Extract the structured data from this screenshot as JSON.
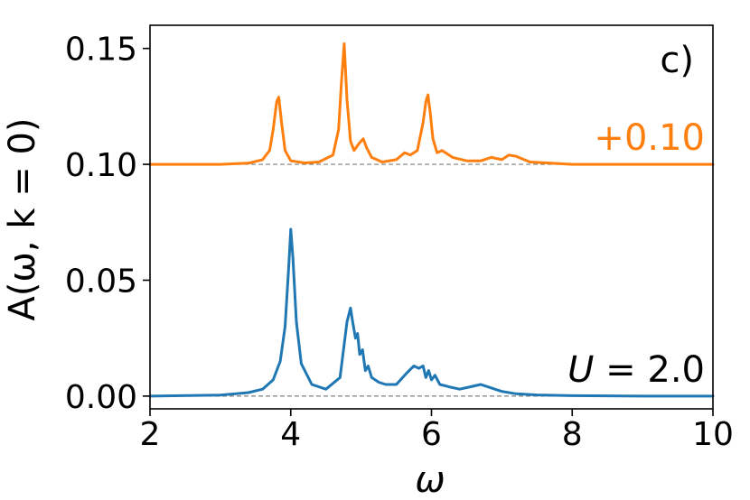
{
  "chart_data": {
    "type": "line",
    "panel_label": "c)",
    "xlabel": "ω",
    "ylabel": "A(ω, k = 0)",
    "xlim": [
      2,
      10
    ],
    "ylim": [
      -0.0055,
      0.16
    ],
    "x_ticks": [
      "2",
      "4",
      "6",
      "8",
      "10"
    ],
    "x_tick_values": [
      2,
      4,
      6,
      8,
      10
    ],
    "y_ticks": [
      "0.00",
      "0.05",
      "0.10",
      "0.15"
    ],
    "y_tick_values": [
      0.0,
      0.05,
      0.1,
      0.15
    ],
    "baselines": [
      0.0,
      0.1
    ],
    "grid": false,
    "legend": "none",
    "colors": {
      "upper": "#ff7f0e",
      "lower": "#1f77b4",
      "baseline": "#808080"
    },
    "annotations": {
      "upper_offset": "+0.10",
      "lower_series": "U = 2.0"
    },
    "series": [
      {
        "offset": 0.1,
        "color": "#ff7f0e",
        "x": [
          2.0,
          3.0,
          3.4,
          3.6,
          3.7,
          3.75,
          3.8,
          3.83,
          3.87,
          3.92,
          4.0,
          4.2,
          4.4,
          4.6,
          4.68,
          4.72,
          4.76,
          4.8,
          4.85,
          4.9,
          4.97,
          5.03,
          5.08,
          5.15,
          5.3,
          5.5,
          5.62,
          5.7,
          5.8,
          5.88,
          5.92,
          5.95,
          5.98,
          6.02,
          6.08,
          6.15,
          6.3,
          6.5,
          6.7,
          6.85,
          7.0,
          7.1,
          7.2,
          7.4,
          7.7,
          8.0,
          9.0,
          10.0
        ],
        "y": [
          0.1,
          0.1,
          0.1005,
          0.102,
          0.106,
          0.115,
          0.127,
          0.129,
          0.118,
          0.106,
          0.1015,
          0.1006,
          0.101,
          0.104,
          0.115,
          0.135,
          0.152,
          0.128,
          0.11,
          0.106,
          0.109,
          0.111,
          0.107,
          0.103,
          0.101,
          0.102,
          0.105,
          0.104,
          0.106,
          0.118,
          0.127,
          0.13,
          0.123,
          0.111,
          0.105,
          0.106,
          0.103,
          0.1015,
          0.1015,
          0.103,
          0.102,
          0.104,
          0.1035,
          0.101,
          0.1005,
          0.1,
          0.1,
          0.1
        ]
      },
      {
        "offset": 0.0,
        "color": "#1f77b4",
        "x": [
          2.0,
          3.0,
          3.4,
          3.6,
          3.75,
          3.85,
          3.92,
          3.97,
          4.0,
          4.03,
          4.08,
          4.15,
          4.3,
          4.5,
          4.7,
          4.8,
          4.85,
          4.88,
          4.92,
          4.95,
          4.98,
          5.02,
          5.06,
          5.1,
          5.15,
          5.25,
          5.35,
          5.5,
          5.65,
          5.75,
          5.82,
          5.88,
          5.92,
          5.96,
          6.0,
          6.05,
          6.12,
          6.25,
          6.4,
          6.55,
          6.7,
          6.8,
          6.9,
          7.0,
          7.2,
          7.5,
          8.0,
          9.0,
          10.0
        ],
        "y": [
          0.0,
          0.0004,
          0.0015,
          0.003,
          0.007,
          0.015,
          0.03,
          0.055,
          0.072,
          0.06,
          0.032,
          0.014,
          0.005,
          0.003,
          0.008,
          0.032,
          0.038,
          0.032,
          0.025,
          0.027,
          0.018,
          0.02,
          0.011,
          0.013,
          0.008,
          0.006,
          0.005,
          0.005,
          0.01,
          0.013,
          0.012,
          0.013,
          0.008,
          0.011,
          0.007,
          0.009,
          0.005,
          0.004,
          0.003,
          0.004,
          0.005,
          0.004,
          0.003,
          0.002,
          0.001,
          0.0005,
          0.0002,
          0.0,
          0.0
        ]
      }
    ]
  }
}
